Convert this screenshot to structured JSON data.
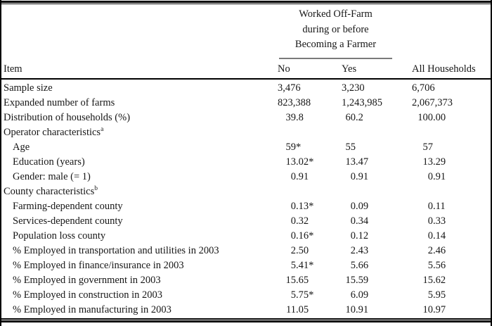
{
  "header": {
    "spanner_lines": [
      "Worked Off-Farm",
      "during or before",
      "Becoming a Farmer"
    ],
    "item_label": "Item",
    "col_no": "No",
    "col_yes": "Yes",
    "col_all": "All Households"
  },
  "rows": [
    {
      "label": "Sample size",
      "sup": "",
      "indent": false,
      "no": "3,476",
      "yes": "3,230",
      "all": "6,706"
    },
    {
      "label": "Expanded number of farms",
      "sup": "",
      "indent": false,
      "no": "823,388",
      "yes": "1,243,985",
      "all": "2,067,373"
    },
    {
      "label": "Distribution of households (%)",
      "sup": "",
      "indent": false,
      "no": "39.8",
      "yes": "60.2",
      "all": "100.00"
    },
    {
      "label": "Operator characteristics",
      "sup": "a",
      "indent": false,
      "no": "",
      "yes": "",
      "all": ""
    },
    {
      "label": "Age",
      "sup": "",
      "indent": true,
      "no": "59*",
      "yes": "55",
      "all": "57"
    },
    {
      "label": "Education (years)",
      "sup": "",
      "indent": true,
      "no": "13.02*",
      "yes": "13.47",
      "all": "13.29"
    },
    {
      "label": "Gender: male (= 1)",
      "sup": "",
      "indent": true,
      "no": "0.91",
      "yes": "0.91",
      "all": "0.91"
    },
    {
      "label": "County characteristics",
      "sup": "b",
      "indent": false,
      "no": "",
      "yes": "",
      "all": ""
    },
    {
      "label": "Farming-dependent county",
      "sup": "",
      "indent": true,
      "no": "0.13*",
      "yes": "0.09",
      "all": "0.11"
    },
    {
      "label": "Services-dependent county",
      "sup": "",
      "indent": true,
      "no": "0.32",
      "yes": "0.34",
      "all": "0.33"
    },
    {
      "label": "Population loss county",
      "sup": "",
      "indent": true,
      "no": "0.16*",
      "yes": "0.12",
      "all": "0.14"
    },
    {
      "label": "% Employed in transportation and utilities in 2003",
      "sup": "",
      "indent": true,
      "no": "2.50",
      "yes": "2.43",
      "all": "2.46"
    },
    {
      "label": "% Employed in finance/insurance in 2003",
      "sup": "",
      "indent": true,
      "no": "5.41*",
      "yes": "5.66",
      "all": "5.56"
    },
    {
      "label": "% Employed in government in 2003",
      "sup": "",
      "indent": true,
      "no": "15.65",
      "yes": "15.59",
      "all": "15.62"
    },
    {
      "label": "% Employed in construction in 2003",
      "sup": "",
      "indent": true,
      "no": "5.75*",
      "yes": "6.09",
      "all": "5.95"
    },
    {
      "label": "% Employed in manufacturing in 2003",
      "sup": "",
      "indent": true,
      "no": "11.05",
      "yes": "10.91",
      "all": "10.97"
    }
  ],
  "colors": {
    "text": "#161616",
    "rule_black": "#000000",
    "spanner_rule_gray": "#7a7a7a",
    "background": "#ffffff"
  }
}
